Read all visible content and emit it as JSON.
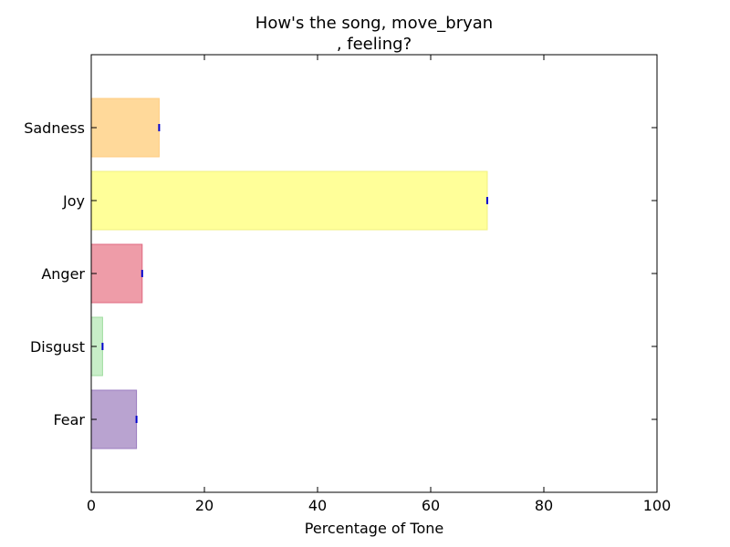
{
  "chart_data": {
    "type": "bar",
    "orientation": "horizontal",
    "title_lines": [
      "How's the song, move_bryan",
      ", feeling?"
    ],
    "xlabel": "Percentage of Tone",
    "ylabel": "",
    "xlim": [
      0,
      100
    ],
    "x_ticks": [
      0,
      20,
      40,
      60,
      80,
      100
    ],
    "categories": [
      "Fear",
      "Disgust",
      "Anger",
      "Joy",
      "Sadness"
    ],
    "values": [
      8,
      2,
      9,
      70,
      12
    ],
    "colors": [
      "#b9a3d0",
      "#c8eec8",
      "#ee9ca8",
      "#ffff99",
      "#ffd99a"
    ],
    "edge_colors": [
      "#9b7cc0",
      "#9fdc9f",
      "#e06a80",
      "#f2f280",
      "#ffcc80"
    ],
    "error_marker_color": "#0000cc",
    "grid": false,
    "legend": "none"
  }
}
